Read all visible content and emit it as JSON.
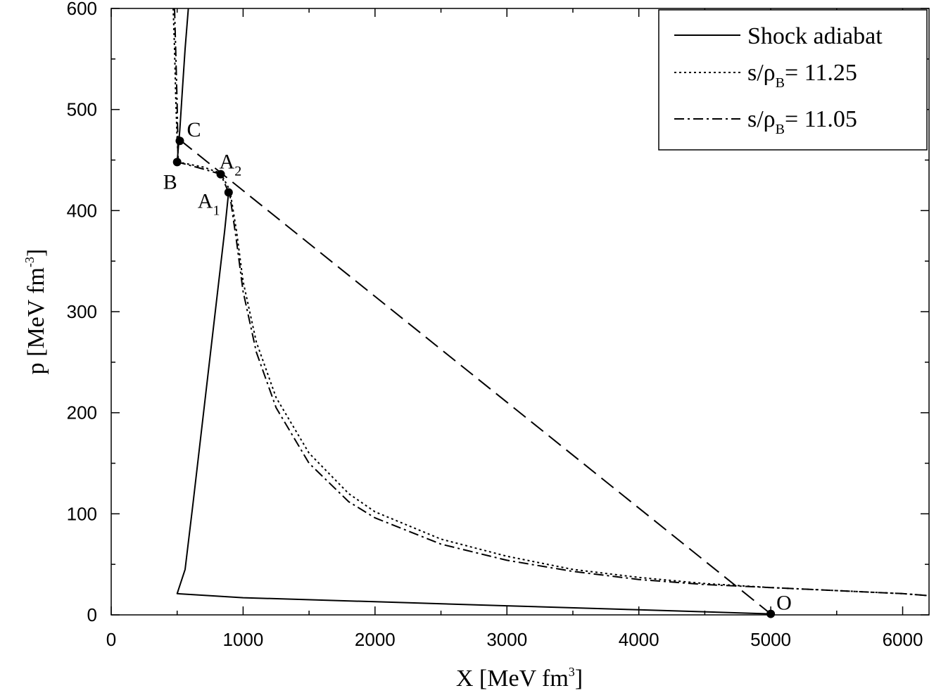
{
  "chart_data": {
    "type": "line",
    "xlabel_main": "X [MeV fm",
    "xlabel_sup": "3",
    "xlabel_end": "]",
    "ylabel_main": "p [MeV fm",
    "ylabel_sup": "-3",
    "ylabel_end": "]",
    "xlim": [
      0,
      6200
    ],
    "ylim": [
      0,
      600
    ],
    "xticks": [
      0,
      1000,
      2000,
      3000,
      4000,
      5000,
      6000
    ],
    "yticks": [
      0,
      100,
      200,
      300,
      400,
      500,
      600
    ],
    "xtick_labels": [
      "0",
      "1000",
      "2000",
      "3000",
      "4000",
      "5000",
      "6000"
    ],
    "ytick_labels": [
      "0",
      "100",
      "200",
      "300",
      "400",
      "500",
      "600"
    ],
    "legend": [
      {
        "id": "shock",
        "style": "solid",
        "text": "Shock adiabat"
      },
      {
        "id": "s1125",
        "style": "dotted",
        "text_pre": "s/ρ",
        "text_sub": "B",
        "text_post": "= 11.25"
      },
      {
        "id": "s1105",
        "style": "dashdot",
        "text_pre": "s/ρ",
        "text_sub": "B",
        "text_post": "= 11.05"
      }
    ],
    "series": [
      {
        "name": "Shock adiabat",
        "style": "solid",
        "points": [
          [
            5000,
            1
          ],
          [
            4000,
            5
          ],
          [
            3000,
            9
          ],
          [
            2000,
            13
          ],
          [
            1000,
            17
          ],
          [
            500,
            21
          ],
          [
            560,
            45
          ],
          [
            620,
            110
          ],
          [
            700,
            200
          ],
          [
            780,
            290
          ],
          [
            860,
            380
          ],
          [
            890,
            418
          ]
        ]
      },
      {
        "name": "Shock adiabat upper branch",
        "style": "solid",
        "points": [
          [
            500,
            448
          ],
          [
            520,
            480
          ],
          [
            540,
            520
          ],
          [
            560,
            560
          ],
          [
            585,
            600
          ]
        ]
      },
      {
        "name": "s/ρB = 11.25",
        "style": "dotted",
        "points": [
          [
            470,
            600
          ],
          [
            480,
            560
          ],
          [
            490,
            510
          ],
          [
            500,
            470
          ],
          [
            510,
            448
          ],
          [
            700,
            443
          ],
          [
            830,
            437
          ],
          [
            900,
            420
          ],
          [
            950,
            380
          ],
          [
            1000,
            330
          ],
          [
            1100,
            270
          ],
          [
            1250,
            215
          ],
          [
            1500,
            160
          ],
          [
            1800,
            120
          ],
          [
            2000,
            102
          ],
          [
            2500,
            75
          ],
          [
            3000,
            58
          ],
          [
            3500,
            45
          ],
          [
            4000,
            37
          ],
          [
            4500,
            31
          ],
          [
            5000,
            27
          ],
          [
            5500,
            24
          ],
          [
            6000,
            21
          ],
          [
            6200,
            19
          ]
        ]
      },
      {
        "name": "s/ρB = 11.05",
        "style": "dashdot",
        "points": [
          [
            480,
            600
          ],
          [
            490,
            555
          ],
          [
            500,
            505
          ],
          [
            505,
            470
          ],
          [
            505,
            448
          ],
          [
            700,
            441
          ],
          [
            830,
            436
          ],
          [
            900,
            415
          ],
          [
            950,
            370
          ],
          [
            1000,
            320
          ],
          [
            1100,
            260
          ],
          [
            1250,
            205
          ],
          [
            1500,
            150
          ],
          [
            1800,
            112
          ],
          [
            2000,
            96
          ],
          [
            2500,
            70
          ],
          [
            3000,
            54
          ],
          [
            3500,
            43
          ],
          [
            4000,
            35
          ],
          [
            4500,
            30
          ],
          [
            5000,
            27
          ],
          [
            5500,
            24
          ],
          [
            6000,
            21
          ],
          [
            6200,
            19
          ]
        ]
      },
      {
        "name": "Rayleigh line",
        "style": "dashed",
        "points": [
          [
            520,
            470
          ],
          [
            5000,
            1
          ]
        ]
      }
    ],
    "markers": [
      {
        "id": "C",
        "label": "C",
        "x": 520,
        "y": 469
      },
      {
        "id": "B",
        "label": "B",
        "x": 500,
        "y": 448
      },
      {
        "id": "A2",
        "label": "A",
        "label_sub": "2",
        "x": 830,
        "y": 436
      },
      {
        "id": "A1",
        "label": "A",
        "label_sub": "1",
        "x": 890,
        "y": 418
      },
      {
        "id": "O",
        "label": "O",
        "x": 5000,
        "y": 1
      }
    ]
  }
}
